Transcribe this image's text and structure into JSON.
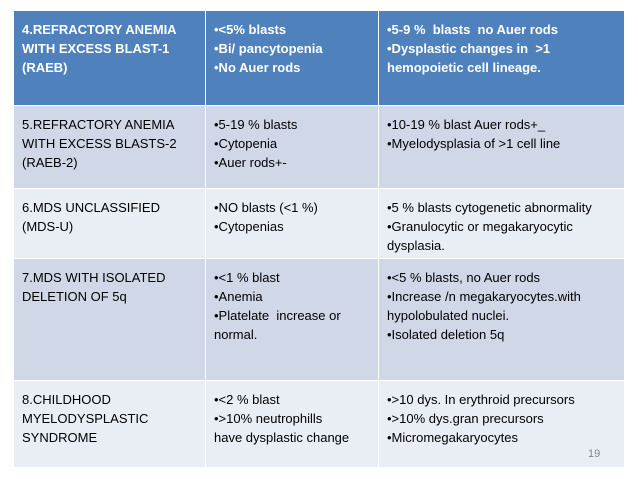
{
  "table": {
    "rows": [
      [
        [
          "4.REFRACTORY ANEMIA",
          "WITH EXCESS BLAST-1",
          "(RAEB)"
        ],
        [
          "•<5% blasts",
          "•Bi/ pancytopenia",
          "•No Auer rods"
        ],
        [
          "•5-9 %  blasts  no Auer rods",
          "•Dysplastic changes in  >1",
          "hemopoietic cell lineage."
        ]
      ],
      [
        [
          "5.REFRACTORY ANEMIA",
          "WITH EXCESS BLASTS-2",
          "(RAEB-2)"
        ],
        [
          "•5-19 % blasts",
          "•Cytopenia",
          "•Auer rods+-"
        ],
        [
          "•10-19 % blast Auer rods+_",
          "•Myelodysplasia of >1 cell line"
        ]
      ],
      [
        [
          "6.MDS UNCLASSIFIED",
          "(MDS-U)"
        ],
        [
          "•NO blasts (<1 %)",
          "•Cytopenias"
        ],
        [
          "•5 % blasts cytogenetic abnormality",
          "•Granulocytic or megakaryocytic",
          "dysplasia."
        ]
      ],
      [
        [
          "7.MDS WITH ISOLATED",
          "DELETION OF 5q"
        ],
        [
          "•<1 % blast",
          "•Anemia",
          "•Platelate  increase or",
          "normal."
        ],
        [
          "•<5 % blasts, no Auer rods",
          "•Increase /n megakaryocytes.with",
          "hypolobulated nuclei.",
          "•Isolated deletion 5q"
        ]
      ],
      [
        [
          "8.CHILDHOOD",
          "MYELODYSPLASTIC",
          "SYNDROME"
        ],
        [
          "•<2 % blast",
          "•>10% neutrophills",
          "have dysplastic change"
        ],
        [
          "•>10 dys. In erythroid precursors",
          "•>10% dys.gran precursors",
          "•Micromegakaryocytes"
        ]
      ]
    ]
  },
  "page_number": "19"
}
